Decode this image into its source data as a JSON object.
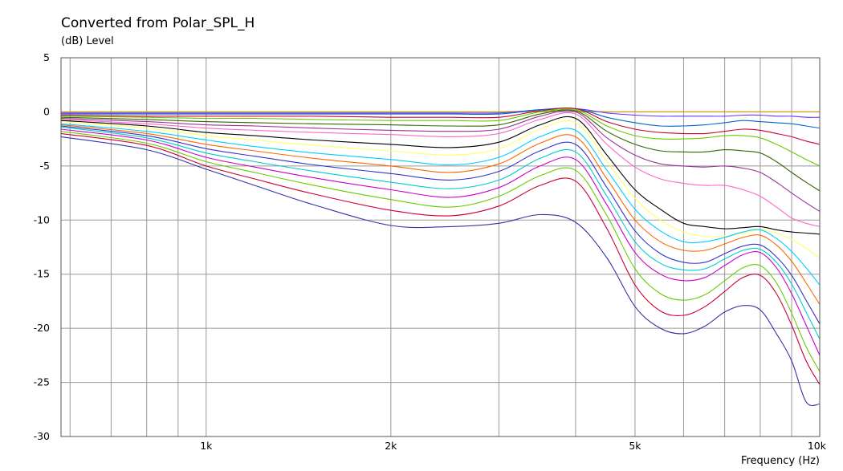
{
  "chart_data": {
    "type": "line",
    "title": "Converted from Polar_SPL_H",
    "ylabel": "(dB)  Level",
    "xlabel": "Frequency  (Hz)",
    "x_scale": "log",
    "xlim": [
      580,
      10000
    ],
    "ylim": [
      -30,
      5
    ],
    "grid": true,
    "y_ticks": [
      5,
      0,
      -5,
      -10,
      -15,
      -20,
      -25,
      -30
    ],
    "y_tick_labels": [
      "5",
      "0",
      "-5",
      "-10",
      "-15",
      "-20",
      "-25",
      "-30"
    ],
    "x_tick_labels": [
      {
        "value": 1000,
        "label": "1k"
      },
      {
        "value": 2000,
        "label": "2k"
      },
      {
        "value": 5000,
        "label": "5k"
      },
      {
        "value": 10000,
        "label": "10k"
      }
    ],
    "x_minor_grid": [
      600,
      700,
      800,
      900,
      1000,
      2000,
      3000,
      4000,
      5000,
      6000,
      7000,
      8000,
      9000,
      10000
    ],
    "x": [
      580,
      800,
      1000,
      1200,
      1500,
      2000,
      2500,
      3000,
      3500,
      4000,
      4500,
      5000,
      5500,
      6000,
      6500,
      7000,
      7500,
      8000,
      8500,
      9000,
      9500,
      10000
    ],
    "series": [
      {
        "color": "#cc9900",
        "values": [
          0,
          0,
          0,
          0,
          0,
          0,
          0,
          0,
          0.1,
          0.1,
          0,
          0,
          0,
          0,
          0,
          0,
          0,
          0,
          0,
          0,
          0,
          0
        ]
      },
      {
        "color": "#6633ff",
        "values": [
          -0.1,
          -0.1,
          -0.1,
          -0.1,
          -0.1,
          -0.1,
          -0.1,
          -0.1,
          0.2,
          0.3,
          -0.1,
          -0.3,
          -0.4,
          -0.4,
          -0.4,
          -0.4,
          -0.3,
          -0.3,
          -0.4,
          -0.4,
          -0.5,
          -0.5
        ]
      },
      {
        "color": "#0066cc",
        "values": [
          -0.2,
          -0.2,
          -0.2,
          -0.2,
          -0.2,
          -0.2,
          -0.2,
          -0.2,
          0.2,
          0.3,
          -0.5,
          -1.0,
          -1.3,
          -1.3,
          -1.2,
          -1.0,
          -0.8,
          -0.9,
          -1.0,
          -1.1,
          -1.3,
          -1.5
        ]
      },
      {
        "color": "#cc0033",
        "values": [
          -0.3,
          -0.4,
          -0.4,
          -0.4,
          -0.4,
          -0.5,
          -0.5,
          -0.5,
          0.1,
          0.3,
          -0.9,
          -1.6,
          -1.9,
          -2.0,
          -2.0,
          -1.8,
          -1.6,
          -1.7,
          -2.0,
          -2.3,
          -2.7,
          -3.0
        ]
      },
      {
        "color": "#66cc00",
        "values": [
          -0.4,
          -0.5,
          -0.6,
          -0.6,
          -0.7,
          -0.8,
          -0.8,
          -0.8,
          0.0,
          0.2,
          -1.3,
          -2.2,
          -2.5,
          -2.5,
          -2.4,
          -2.2,
          -2.2,
          -2.4,
          -3.0,
          -3.7,
          -4.4,
          -5.0
        ]
      },
      {
        "color": "#336600",
        "values": [
          -0.5,
          -0.7,
          -0.9,
          -1.0,
          -1.1,
          -1.2,
          -1.3,
          -1.2,
          -0.2,
          0.1,
          -1.8,
          -3.0,
          -3.6,
          -3.7,
          -3.7,
          -3.5,
          -3.6,
          -3.8,
          -4.6,
          -5.6,
          -6.5,
          -7.3
        ]
      },
      {
        "color": "#993399",
        "values": [
          -0.6,
          -0.9,
          -1.2,
          -1.3,
          -1.5,
          -1.7,
          -1.8,
          -1.6,
          -0.4,
          0.0,
          -2.4,
          -4.0,
          -4.8,
          -5.0,
          -5.1,
          -5.0,
          -5.2,
          -5.6,
          -6.5,
          -7.5,
          -8.4,
          -9.2
        ]
      },
      {
        "color": "#ff66cc",
        "values": [
          -0.7,
          -1.1,
          -1.5,
          -1.7,
          -1.9,
          -2.1,
          -2.3,
          -2.0,
          -0.7,
          -0.2,
          -3.0,
          -5.1,
          -6.2,
          -6.6,
          -6.8,
          -6.8,
          -7.2,
          -7.8,
          -8.8,
          -9.8,
          -10.3,
          -10.6
        ]
      },
      {
        "color": "#000000",
        "values": [
          -0.8,
          -1.3,
          -1.9,
          -2.2,
          -2.6,
          -3.0,
          -3.3,
          -2.8,
          -1.2,
          -0.6,
          -4.0,
          -7.2,
          -9.0,
          -10.3,
          -10.6,
          -10.8,
          -10.7,
          -10.6,
          -10.9,
          -11.1,
          -11.2,
          -11.3
        ]
      },
      {
        "color": "#ffff66",
        "values": [
          -0.9,
          -1.5,
          -2.2,
          -2.6,
          -3.1,
          -3.6,
          -4.0,
          -3.4,
          -1.6,
          -1.0,
          -4.6,
          -8.0,
          -10.0,
          -11.1,
          -11.5,
          -11.5,
          -11.2,
          -10.9,
          -11.2,
          -11.8,
          -12.6,
          -13.5
        ]
      },
      {
        "color": "#00ccff",
        "values": [
          -1.1,
          -1.8,
          -2.6,
          -3.2,
          -3.8,
          -4.4,
          -4.9,
          -4.2,
          -2.3,
          -1.7,
          -5.4,
          -9.0,
          -11.0,
          -12.0,
          -12.0,
          -11.6,
          -11.1,
          -10.9,
          -11.7,
          -12.9,
          -14.4,
          -16.0
        ]
      },
      {
        "color": "#ff6600",
        "values": [
          -1.2,
          -2.0,
          -3.0,
          -3.6,
          -4.3,
          -5.0,
          -5.6,
          -4.8,
          -2.9,
          -2.3,
          -6.2,
          -10.0,
          -12.0,
          -12.8,
          -12.8,
          -12.2,
          -11.6,
          -11.4,
          -12.3,
          -13.8,
          -15.8,
          -17.8
        ]
      },
      {
        "color": "#3333cc",
        "values": [
          -1.3,
          -2.2,
          -3.4,
          -4.1,
          -4.9,
          -5.7,
          -6.3,
          -5.5,
          -3.6,
          -3.0,
          -7.0,
          -11.0,
          -13.1,
          -13.9,
          -13.9,
          -13.1,
          -12.4,
          -12.3,
          -13.4,
          -15.1,
          -17.4,
          -19.6
        ]
      },
      {
        "color": "#00cccc",
        "values": [
          -1.4,
          -2.4,
          -3.8,
          -4.6,
          -5.5,
          -6.5,
          -7.1,
          -6.3,
          -4.3,
          -3.7,
          -7.8,
          -12.0,
          -14.0,
          -14.6,
          -14.5,
          -13.6,
          -12.8,
          -12.7,
          -13.9,
          -15.9,
          -18.5,
          -21.0
        ]
      },
      {
        "color": "#cc00cc",
        "values": [
          -1.6,
          -2.6,
          -4.2,
          -5.1,
          -6.1,
          -7.2,
          -7.9,
          -7.0,
          -5.0,
          -4.4,
          -8.6,
          -13.0,
          -15.0,
          -15.6,
          -15.3,
          -14.2,
          -13.2,
          -13.0,
          -14.4,
          -16.8,
          -19.7,
          -22.5
        ]
      },
      {
        "color": "#66cc00",
        "values": [
          -1.8,
          -2.9,
          -4.6,
          -5.6,
          -6.8,
          -8.1,
          -8.8,
          -7.8,
          -5.9,
          -5.4,
          -9.6,
          -14.5,
          -16.8,
          -17.4,
          -16.9,
          -15.6,
          -14.4,
          -14.2,
          -15.8,
          -18.6,
          -21.7,
          -24.0
        ]
      },
      {
        "color": "#cc0033",
        "values": [
          -2.0,
          -3.1,
          -5.0,
          -6.2,
          -7.6,
          -9.1,
          -9.6,
          -8.7,
          -6.8,
          -6.4,
          -10.8,
          -16.0,
          -18.4,
          -18.8,
          -18.0,
          -16.6,
          -15.3,
          -15.1,
          -16.8,
          -19.7,
          -23.0,
          -25.2
        ]
      },
      {
        "color": "#3333aa",
        "values": [
          -2.3,
          -3.5,
          -5.3,
          -6.8,
          -8.6,
          -10.5,
          -10.6,
          -10.3,
          -9.5,
          -10.2,
          -13.5,
          -18.0,
          -20.0,
          -20.5,
          -19.8,
          -18.5,
          -17.9,
          -18.3,
          -20.5,
          -23.0,
          -26.8,
          -27.0
        ]
      }
    ]
  }
}
